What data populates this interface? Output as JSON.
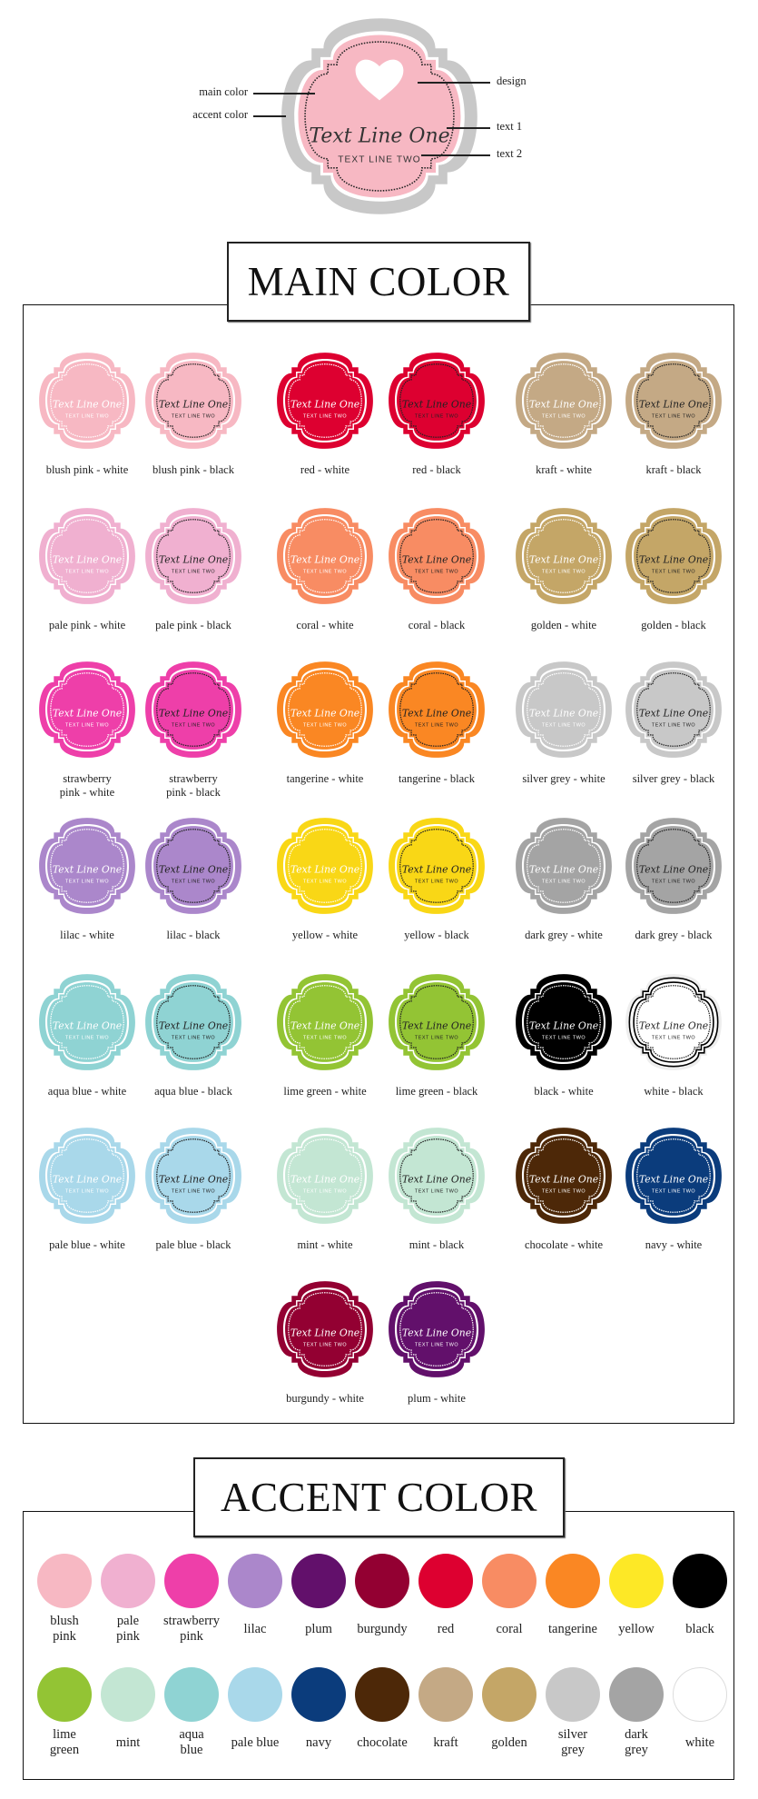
{
  "diagram": {
    "callouts": {
      "main_color": "main color",
      "accent_color": "accent color",
      "design": "design",
      "text1": "text 1",
      "text2": "text 2"
    },
    "text_line_one": "Text Line One",
    "text_line_two": "TEXT LINE TWO",
    "main": "#f7b8c3",
    "accent": "#c8c8c8",
    "design_icon": "heart-icon"
  },
  "main_section": {
    "title": "MAIN COLOR",
    "badge_text": {
      "line_one": "Text Line One",
      "line_two": "TEXT LINE TWO"
    },
    "items": [
      {
        "label": "blush pink - white",
        "main": "#f7b8c3",
        "accent": "#f7b8c3",
        "line": "white"
      },
      {
        "label": "blush pink - black",
        "main": "#f7b8c3",
        "accent": "#f7b8c3",
        "line": "black"
      },
      {
        "label": "red - white",
        "main": "#dd0030",
        "accent": "#dd0030",
        "line": "white"
      },
      {
        "label": "red - black",
        "main": "#dd0030",
        "accent": "#dd0030",
        "line": "black"
      },
      {
        "label": "kraft - white",
        "main": "#c4a985",
        "accent": "#c4a985",
        "line": "white"
      },
      {
        "label": "kraft - black",
        "main": "#c4a985",
        "accent": "#c4a985",
        "line": "black"
      },
      {
        "label": "pale pink - white",
        "main": "#f0b0d0",
        "accent": "#f0b0d0",
        "line": "white"
      },
      {
        "label": "pale pink - black",
        "main": "#f0b0d0",
        "accent": "#f0b0d0",
        "line": "black"
      },
      {
        "label": "coral - white",
        "main": "#f88c63",
        "accent": "#f88c63",
        "line": "white"
      },
      {
        "label": "coral - black",
        "main": "#f88c63",
        "accent": "#f88c63",
        "line": "black"
      },
      {
        "label": "golden - white",
        "main": "#c4a667",
        "accent": "#c4a667",
        "line": "white"
      },
      {
        "label": "golden - black",
        "main": "#c4a667",
        "accent": "#c4a667",
        "line": "black"
      },
      {
        "label": "strawberry\npink - white",
        "main": "#ee3fa9",
        "accent": "#ee3fa9",
        "line": "white"
      },
      {
        "label": "strawberry\npink - black",
        "main": "#ee3fa9",
        "accent": "#ee3fa9",
        "line": "black"
      },
      {
        "label": "tangerine - white",
        "main": "#fa8723",
        "accent": "#fa8723",
        "line": "white"
      },
      {
        "label": "tangerine - black",
        "main": "#fa8723",
        "accent": "#fa8723",
        "line": "black"
      },
      {
        "label": "silver grey - white",
        "main": "#c8c8c8",
        "accent": "#c8c8c8",
        "line": "white"
      },
      {
        "label": "silver grey - black",
        "main": "#c8c8c8",
        "accent": "#c8c8c8",
        "line": "black"
      },
      {
        "label": "lilac - white",
        "main": "#ab87cb",
        "accent": "#ab87cb",
        "line": "white"
      },
      {
        "label": "lilac - black",
        "main": "#ab87cb",
        "accent": "#ab87cb",
        "line": "black"
      },
      {
        "label": "yellow - white",
        "main": "#f9d716",
        "accent": "#f9d716",
        "line": "white"
      },
      {
        "label": "yellow - black",
        "main": "#f9d716",
        "accent": "#f9d716",
        "line": "black"
      },
      {
        "label": "dark grey - white",
        "main": "#a4a4a4",
        "accent": "#a4a4a4",
        "line": "white"
      },
      {
        "label": "dark grey - black",
        "main": "#a4a4a4",
        "accent": "#a4a4a4",
        "line": "black"
      },
      {
        "label": "aqua blue - white",
        "main": "#8fd3d3",
        "accent": "#8fd3d3",
        "line": "white"
      },
      {
        "label": "aqua blue - black",
        "main": "#8fd3d3",
        "accent": "#8fd3d3",
        "line": "black"
      },
      {
        "label": "lime green - white",
        "main": "#93c434",
        "accent": "#93c434",
        "line": "white"
      },
      {
        "label": "lime green - black",
        "main": "#93c434",
        "accent": "#93c434",
        "line": "black"
      },
      {
        "label": "black - white",
        "main": "#000000",
        "accent": "#000000",
        "line": "white"
      },
      {
        "label": "white - black",
        "main": "#ffffff",
        "accent": "#eeeeee",
        "line": "black"
      },
      {
        "label": "pale blue - white",
        "main": "#a9d8ea",
        "accent": "#a9d8ea",
        "line": "white"
      },
      {
        "label": "pale blue - black",
        "main": "#a9d8ea",
        "accent": "#a9d8ea",
        "line": "black"
      },
      {
        "label": "mint - white",
        "main": "#c3e6d3",
        "accent": "#c3e6d3",
        "line": "white"
      },
      {
        "label": "mint - black",
        "main": "#c3e6d3",
        "accent": "#c3e6d3",
        "line": "black"
      },
      {
        "label": "chocolate - white",
        "main": "#4d2808",
        "accent": "#4d2808",
        "line": "white"
      },
      {
        "label": "navy - white",
        "main": "#0b3c7c",
        "accent": "#0b3c7c",
        "line": "white"
      },
      {
        "label": "burgundy - white",
        "main": "#930032",
        "accent": "#930032",
        "line": "white"
      },
      {
        "label": "plum - white",
        "main": "#62106b",
        "accent": "#62106b",
        "line": "white"
      }
    ]
  },
  "accent_section": {
    "title": "ACCENT COLOR",
    "colors": [
      {
        "name": "blush\npink",
        "color": "#f7b8c3"
      },
      {
        "name": "pale\npink",
        "color": "#f0b0d0"
      },
      {
        "name": "strawberry\npink",
        "color": "#ee3fa9"
      },
      {
        "name": "lilac",
        "color": "#ab87cb"
      },
      {
        "name": "plum",
        "color": "#62106b"
      },
      {
        "name": "burgundy",
        "color": "#930032"
      },
      {
        "name": "red",
        "color": "#dd0030"
      },
      {
        "name": "coral",
        "color": "#f88c63"
      },
      {
        "name": "tangerine",
        "color": "#fa8723"
      },
      {
        "name": "yellow",
        "color": "#fde826"
      },
      {
        "name": "black",
        "color": "#000000"
      },
      {
        "name": "lime\ngreen",
        "color": "#93c434"
      },
      {
        "name": "mint",
        "color": "#c3e6d3"
      },
      {
        "name": "aqua\nblue",
        "color": "#8fd3d3"
      },
      {
        "name": "pale blue",
        "color": "#a9d8ea"
      },
      {
        "name": "navy",
        "color": "#0b3c7c"
      },
      {
        "name": "chocolate",
        "color": "#4d2808"
      },
      {
        "name": "kraft",
        "color": "#c4a985"
      },
      {
        "name": "golden",
        "color": "#c4a667"
      },
      {
        "name": "silver\ngrey",
        "color": "#c8c8c8"
      },
      {
        "name": "dark\ngrey",
        "color": "#a4a4a4"
      },
      {
        "name": "white",
        "color": "#ffffff"
      }
    ]
  }
}
